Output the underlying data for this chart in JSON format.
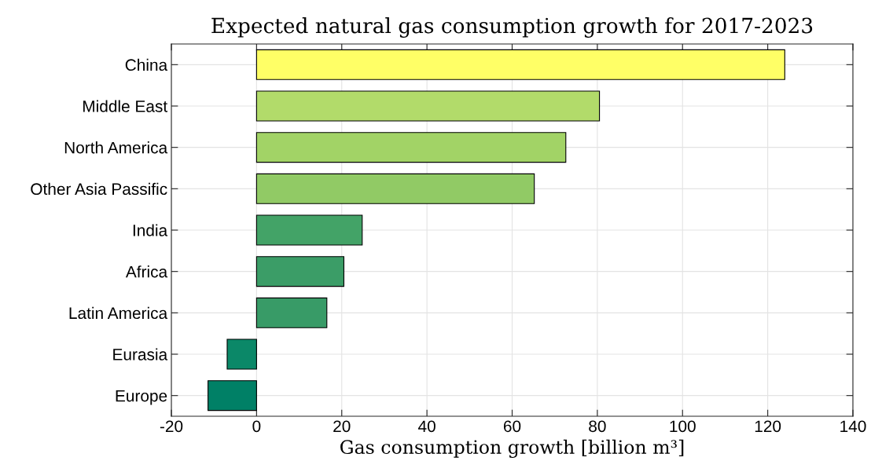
{
  "chart_data": {
    "type": "bar",
    "orientation": "horizontal",
    "title": "Expected natural gas consumption growth for 2017-2023",
    "xlabel": "Gas consumption growth [billion m³]",
    "categories": [
      "China",
      "Middle East",
      "North America",
      "Other Asia Passific",
      "India",
      "Africa",
      "Latin America",
      "Eurasia",
      "Europe"
    ],
    "values": [
      124,
      80.5,
      72.6,
      65.2,
      24.8,
      20.5,
      16.5,
      -6.9,
      -11.4
    ],
    "colors": [
      "#ffff66",
      "#b2db6a",
      "#a2d366",
      "#91ca65",
      "#43a367",
      "#3b9d67",
      "#389b67",
      "#0b8868",
      "#008066"
    ],
    "xlim": [
      -20,
      140
    ],
    "xticks": [
      -20,
      0,
      20,
      40,
      60,
      80,
      100,
      120,
      140
    ],
    "grid": true
  }
}
